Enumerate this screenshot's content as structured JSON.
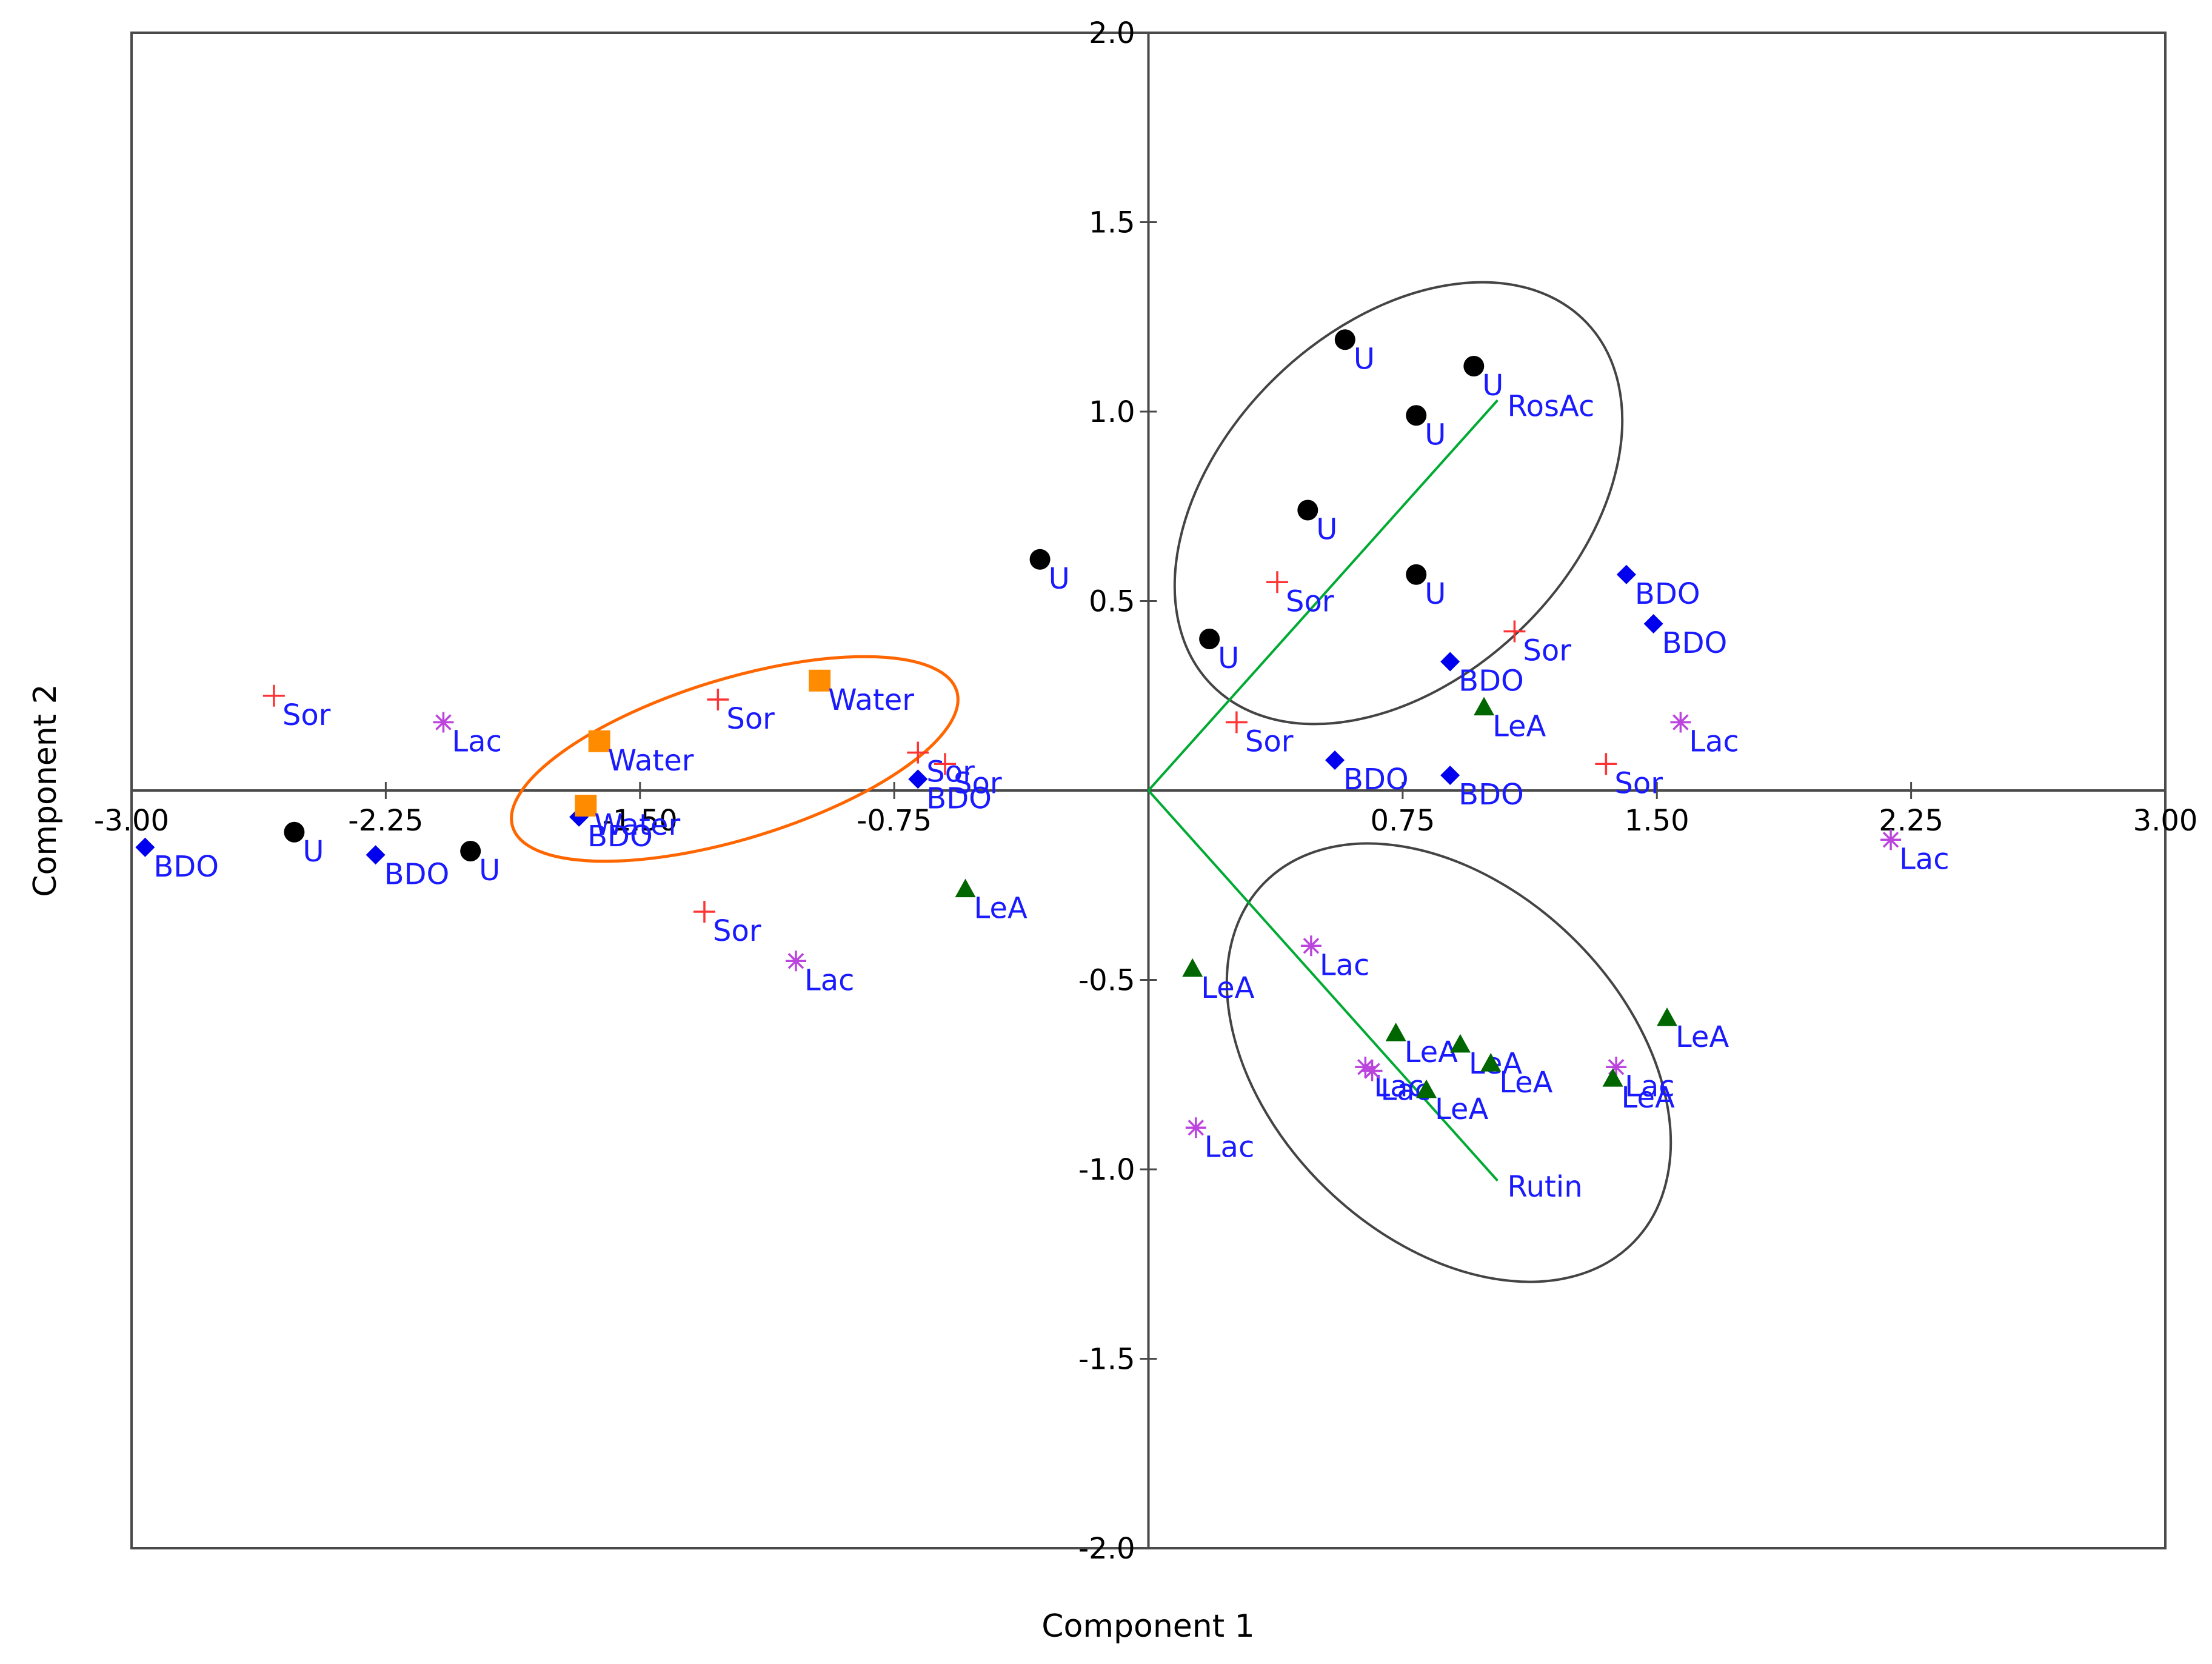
{
  "chart_data": {
    "type": "scatter",
    "title": "",
    "xlabel": "Component 1",
    "ylabel": "Component 2",
    "xlim": [
      -3.0,
      3.0
    ],
    "ylim": [
      -2.0,
      2.0
    ],
    "x_ticks": [
      {
        "value": -3.0,
        "label": "-3.00"
      },
      {
        "value": -2.25,
        "label": "-2.25"
      },
      {
        "value": -1.5,
        "label": "-1.50"
      },
      {
        "value": -0.75,
        "label": "-0.75"
      },
      {
        "value": 0.75,
        "label": "0.75"
      },
      {
        "value": 1.5,
        "label": "1.50"
      },
      {
        "value": 2.25,
        "label": "2.25"
      },
      {
        "value": 3.0,
        "label": "3.00"
      }
    ],
    "y_ticks": [
      {
        "value": 2.0,
        "label": "2.0"
      },
      {
        "value": 1.5,
        "label": "1.5"
      },
      {
        "value": 1.0,
        "label": "1.0"
      },
      {
        "value": 0.5,
        "label": "0.5"
      },
      {
        "value": -0.5,
        "label": "-0.5"
      },
      {
        "value": -1.0,
        "label": "-1.0"
      },
      {
        "value": -1.5,
        "label": "-1.5"
      },
      {
        "value": -2.0,
        "label": "-2.0"
      }
    ],
    "colors": {
      "label_text": "#1a1aff",
      "U": "#000000",
      "BDO": "#0000ee",
      "Sor": "#ff3333",
      "Lac": "#bb44dd",
      "LeA": "#006600",
      "Water": "#ff8c00",
      "loading_line": "#00aa33",
      "group_ellipse": "#444444",
      "water_ellipse": "#ff6600"
    },
    "series": [
      {
        "name": "U",
        "marker": "circle",
        "points": [
          {
            "x": 0.58,
            "y": 1.19,
            "label": "U"
          },
          {
            "x": 0.96,
            "y": 1.12,
            "label": "U"
          },
          {
            "x": 0.79,
            "y": 0.99,
            "label": "U"
          },
          {
            "x": 0.47,
            "y": 0.74,
            "label": "U"
          },
          {
            "x": 0.79,
            "y": 0.57,
            "label": "U"
          },
          {
            "x": 0.18,
            "y": 0.4,
            "label": "U"
          },
          {
            "x": -0.32,
            "y": 0.61,
            "label": "U"
          },
          {
            "x": -2.52,
            "y": -0.11,
            "label": "U"
          },
          {
            "x": -2.0,
            "y": -0.16,
            "label": "U"
          }
        ]
      },
      {
        "name": "BDO",
        "marker": "diamond",
        "points": [
          {
            "x": 1.41,
            "y": 0.57,
            "label": "BDO"
          },
          {
            "x": 1.49,
            "y": 0.44,
            "label": "BDO"
          },
          {
            "x": 0.89,
            "y": 0.34,
            "label": "BDO"
          },
          {
            "x": 0.55,
            "y": 0.08,
            "label": "BDO"
          },
          {
            "x": 0.89,
            "y": 0.04,
            "label": "BDO"
          },
          {
            "x": -0.68,
            "y": 0.03,
            "label": "BDO"
          },
          {
            "x": -1.68,
            "y": -0.07,
            "label": "BDO"
          },
          {
            "x": -2.96,
            "y": -0.15,
            "label": "BDO"
          },
          {
            "x": -2.28,
            "y": -0.17,
            "label": "BDO"
          }
        ]
      },
      {
        "name": "Sor",
        "marker": "plus",
        "points": [
          {
            "x": 0.38,
            "y": 0.55,
            "label": "Sor"
          },
          {
            "x": 1.08,
            "y": 0.42,
            "label": "Sor"
          },
          {
            "x": 0.26,
            "y": 0.18,
            "label": "Sor"
          },
          {
            "x": 1.35,
            "y": 0.07,
            "label": "Sor"
          },
          {
            "x": -2.58,
            "y": 0.25,
            "label": "Sor"
          },
          {
            "x": -1.27,
            "y": 0.24,
            "label": "Sor"
          },
          {
            "x": -0.68,
            "y": 0.1,
            "label": "Sor"
          },
          {
            "x": -0.6,
            "y": 0.07,
            "label": "Sor"
          },
          {
            "x": -1.31,
            "y": -0.32,
            "label": "Sor"
          }
        ]
      },
      {
        "name": "Lac",
        "marker": "asterisk",
        "points": [
          {
            "x": 1.57,
            "y": 0.18,
            "label": "Lac"
          },
          {
            "x": 2.19,
            "y": -0.13,
            "label": "Lac"
          },
          {
            "x": -2.08,
            "y": 0.18,
            "label": "Lac"
          },
          {
            "x": -1.04,
            "y": -0.45,
            "label": "Lac"
          },
          {
            "x": 0.48,
            "y": -0.41,
            "label": "Lac"
          },
          {
            "x": 0.64,
            "y": -0.73,
            "label": "Lac"
          },
          {
            "x": 0.66,
            "y": -0.74,
            "label": "Lac"
          },
          {
            "x": 1.38,
            "y": -0.73,
            "label": "Lac"
          },
          {
            "x": 0.14,
            "y": -0.89,
            "label": "Lac"
          }
        ]
      },
      {
        "name": "LeA",
        "marker": "triangle",
        "points": [
          {
            "x": 0.99,
            "y": 0.22,
            "label": "LeA"
          },
          {
            "x": -0.54,
            "y": -0.26,
            "label": "LeA"
          },
          {
            "x": 0.13,
            "y": -0.47,
            "label": "LeA"
          },
          {
            "x": 0.73,
            "y": -0.64,
            "label": "LeA"
          },
          {
            "x": 0.92,
            "y": -0.67,
            "label": "LeA"
          },
          {
            "x": 1.01,
            "y": -0.72,
            "label": "LeA"
          },
          {
            "x": 0.82,
            "y": -0.79,
            "label": "LeA"
          },
          {
            "x": 1.53,
            "y": -0.6,
            "label": "LeA"
          },
          {
            "x": 1.37,
            "y": -0.76,
            "label": "LeA"
          }
        ]
      },
      {
        "name": "Water",
        "marker": "square",
        "points": [
          {
            "x": -0.97,
            "y": 0.29,
            "label": "Water"
          },
          {
            "x": -1.62,
            "y": 0.13,
            "label": "Water"
          },
          {
            "x": -1.66,
            "y": -0.04,
            "label": "Water"
          }
        ]
      }
    ],
    "loadings": [
      {
        "name": "RosAc",
        "x": 1.03,
        "y": 1.03,
        "label": "RosAc"
      },
      {
        "name": "Rutin",
        "x": 1.03,
        "y": -1.03,
        "label": "Rutin"
      }
    ]
  }
}
